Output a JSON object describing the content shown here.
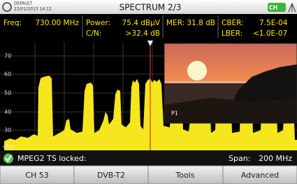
{
  "header": {
    "profile": "DEFAULT",
    "datetime": "23/01/2013 14:12",
    "title": "SPECTRUM 2/3",
    "badge": "CH"
  },
  "measurements": {
    "freq": {
      "label": "Freq:",
      "value": "730.00 MHz"
    },
    "power": {
      "label": "Power:",
      "value": "75.4 dBµV"
    },
    "cn": {
      "label": "C/N:",
      "value": ">32.4 dB"
    },
    "mer": {
      "label": "MER:",
      "value": "31.8 dB"
    },
    "cber": {
      "label": "CBER:",
      "value": "7.5E-04"
    },
    "lber": {
      "label": "LBER:",
      "value": "<1.0E-07"
    }
  },
  "plot": {
    "y_labels": [
      "70",
      "60",
      "50",
      "40",
      "30"
    ],
    "unit": "dBuV",
    "preview_label": "P1"
  },
  "status": {
    "lock": "MPEG2 TS locked:",
    "span_label": "Span:",
    "span_value": "200 MHz"
  },
  "buttons": [
    "CH 53",
    "DVB-T2",
    "Tools",
    "Advanced"
  ]
}
